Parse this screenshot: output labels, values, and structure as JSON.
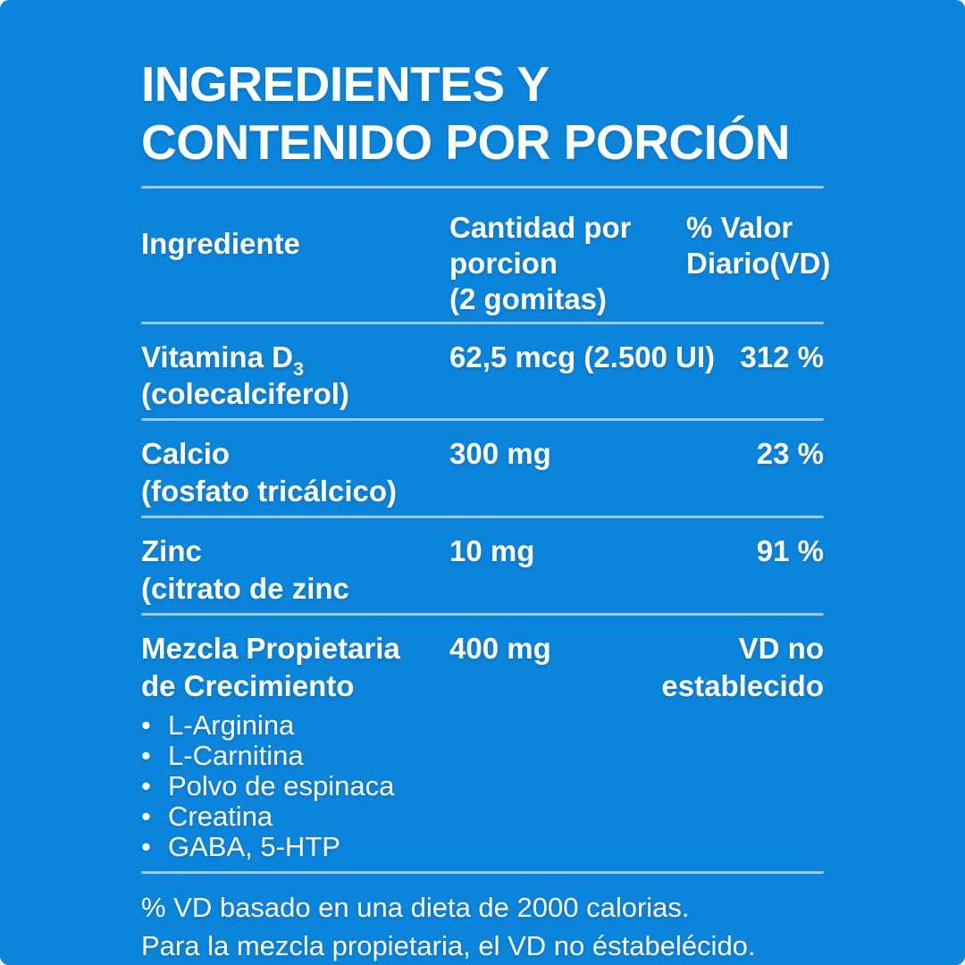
{
  "style": {
    "card-bg": "#0b85dc",
    "divider": "#aed3ec",
    "text": "#ffffff"
  },
  "title": {
    "line1": "INGREDIENTES Y",
    "line2": "CONTENIDO POR PORCIÓN"
  },
  "table": {
    "header": {
      "ingredient": "Ingrediente",
      "amount_line1": "Cantidad por porcion",
      "amount_line2": "(2 gomitas)",
      "daily_value": "% Valor Diario(VD)"
    },
    "rows": [
      {
        "name": "Vitamina D",
        "name_subscript": "3",
        "detail": "(colecalciferol)",
        "amount": "62,5 mcg (2.500 UI)",
        "daily_value": "312 %"
      },
      {
        "name": "Calcio",
        "detail": "(fosfato tricálcico)",
        "amount": "300 mg",
        "daily_value": "23 %"
      },
      {
        "name": "Zinc",
        "detail": "(citrato de zinc",
        "amount": "10 mg",
        "daily_value": "91 %"
      },
      {
        "name": "Mezcla Propietaria de Crecimiento",
        "amount": "400 mg",
        "daily_value": "VD no establecido",
        "bullet": "•",
        "components": [
          "L-Arginina",
          "L-Carnitina",
          "Polvo de espinaca",
          "Creatina",
          "GABA, 5-HTP"
        ]
      }
    ]
  },
  "footnotes": {
    "line1": "% VD basado en una dieta de 2000 calorias.",
    "line2": "Para la mezcla propietaria, el VD no éstabelécido."
  }
}
